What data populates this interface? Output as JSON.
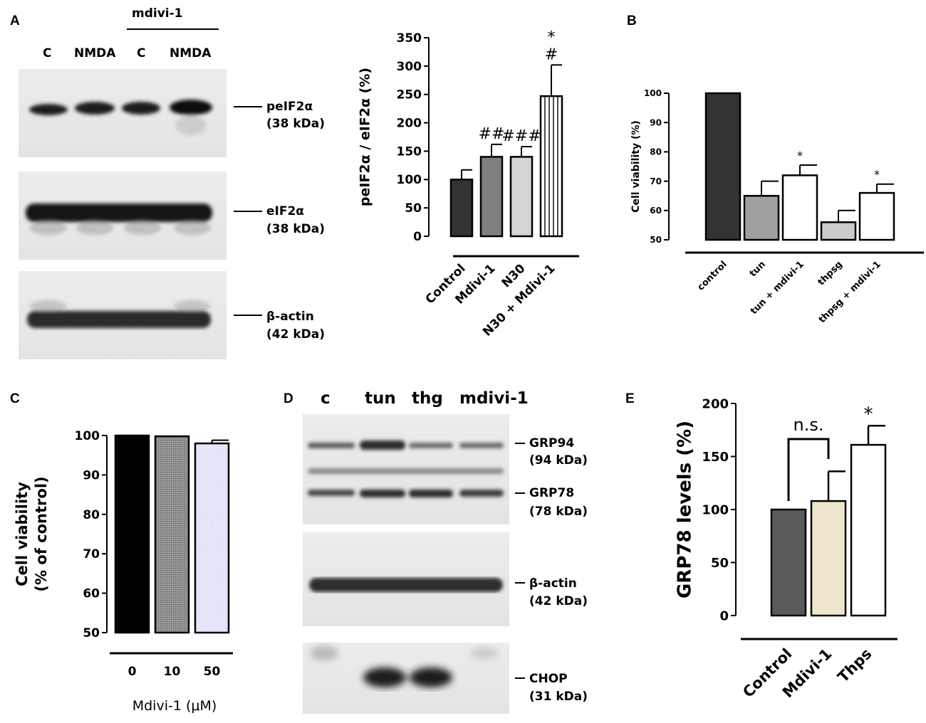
{
  "panels": {
    "a": {
      "letter": "A",
      "treatment_label": "mdivi-1",
      "lanes": [
        "C",
        "NMDA",
        "C",
        "NMDA"
      ],
      "blots": [
        {
          "name": "peIF2α",
          "size": "(38 kDa)"
        },
        {
          "name": "eIF2α",
          "size": "(38 kDa)"
        },
        {
          "name": "β-actin",
          "size": "(42 kDa)"
        }
      ]
    },
    "b": {
      "letter": "B"
    },
    "c": {
      "letter": "C"
    },
    "d": {
      "letter": "D",
      "lanes": [
        "c",
        "tun",
        "thg",
        "mdivi-1"
      ],
      "blots": [
        {
          "name": "GRP94",
          "size": "(94 kDa)"
        },
        {
          "name": "GRP78",
          "size": "(78 kDa)"
        },
        {
          "name": "β-actin",
          "size": "(42 kDa)"
        },
        {
          "name": "CHOP",
          "size": "(31 kDa)"
        }
      ]
    },
    "e": {
      "letter": "E"
    }
  },
  "chart_data": [
    {
      "id": "A-chart",
      "type": "bar",
      "ylabel": "peIF2α / eIF2α (%)",
      "ylim": [
        0,
        350
      ],
      "yticks": [
        0,
        50,
        100,
        150,
        200,
        250,
        300,
        350
      ],
      "categories": [
        "Control",
        "Mdivi-1",
        "N30",
        "N30 + Mdivi-1"
      ],
      "values": [
        100,
        140,
        140,
        247
      ],
      "errors": [
        17,
        22,
        18,
        55
      ],
      "annotations": [
        "",
        "##",
        "###",
        "*\n#"
      ],
      "colors": [
        "#333333",
        "#7f7f7f",
        "#d4d4d4",
        "striped"
      ]
    },
    {
      "id": "B-chart",
      "type": "bar",
      "ylabel": "Cell viability (%)",
      "ylim": [
        50,
        100
      ],
      "yticks": [
        50,
        60,
        70,
        80,
        90,
        100
      ],
      "categories": [
        "control",
        "tun",
        "tun + mdivi-1",
        "thpsg",
        "thpsg + mdivi-1"
      ],
      "values": [
        100,
        65,
        72,
        56,
        66
      ],
      "errors": [
        0,
        5,
        3.5,
        4,
        3
      ],
      "annotations": [
        "",
        "",
        "*",
        "",
        "*"
      ],
      "colors": [
        "#333333",
        "#a0a0a0",
        "#ffffff",
        "#cccccc",
        "#ffffff"
      ]
    },
    {
      "id": "C-chart",
      "type": "bar",
      "ylabel": "Cell viability (% of control)",
      "xlabel": "Mdivi-1 (μM)",
      "ylim": [
        50,
        100
      ],
      "yticks": [
        50,
        60,
        70,
        80,
        90,
        100
      ],
      "categories": [
        "0",
        "10",
        "50"
      ],
      "values": [
        100,
        99.8,
        98
      ],
      "errors": [
        0,
        0,
        0.8
      ],
      "colors": [
        "#000000",
        "#8c8c8c",
        "#e8e8ff"
      ]
    },
    {
      "id": "E-chart",
      "type": "bar",
      "ylabel": "GRP78 levels (%)",
      "ylim": [
        0,
        200
      ],
      "yticks": [
        0,
        50,
        100,
        150,
        200
      ],
      "categories": [
        "Control",
        "Mdivi-1",
        "Thps"
      ],
      "values": [
        100,
        108,
        161
      ],
      "errors": [
        0,
        28,
        18
      ],
      "annotations": [
        "",
        "",
        "*"
      ],
      "bracket_label": "n.s.",
      "colors": [
        "#5a5a5a",
        "#ede6cc",
        "#ffffff"
      ]
    }
  ]
}
